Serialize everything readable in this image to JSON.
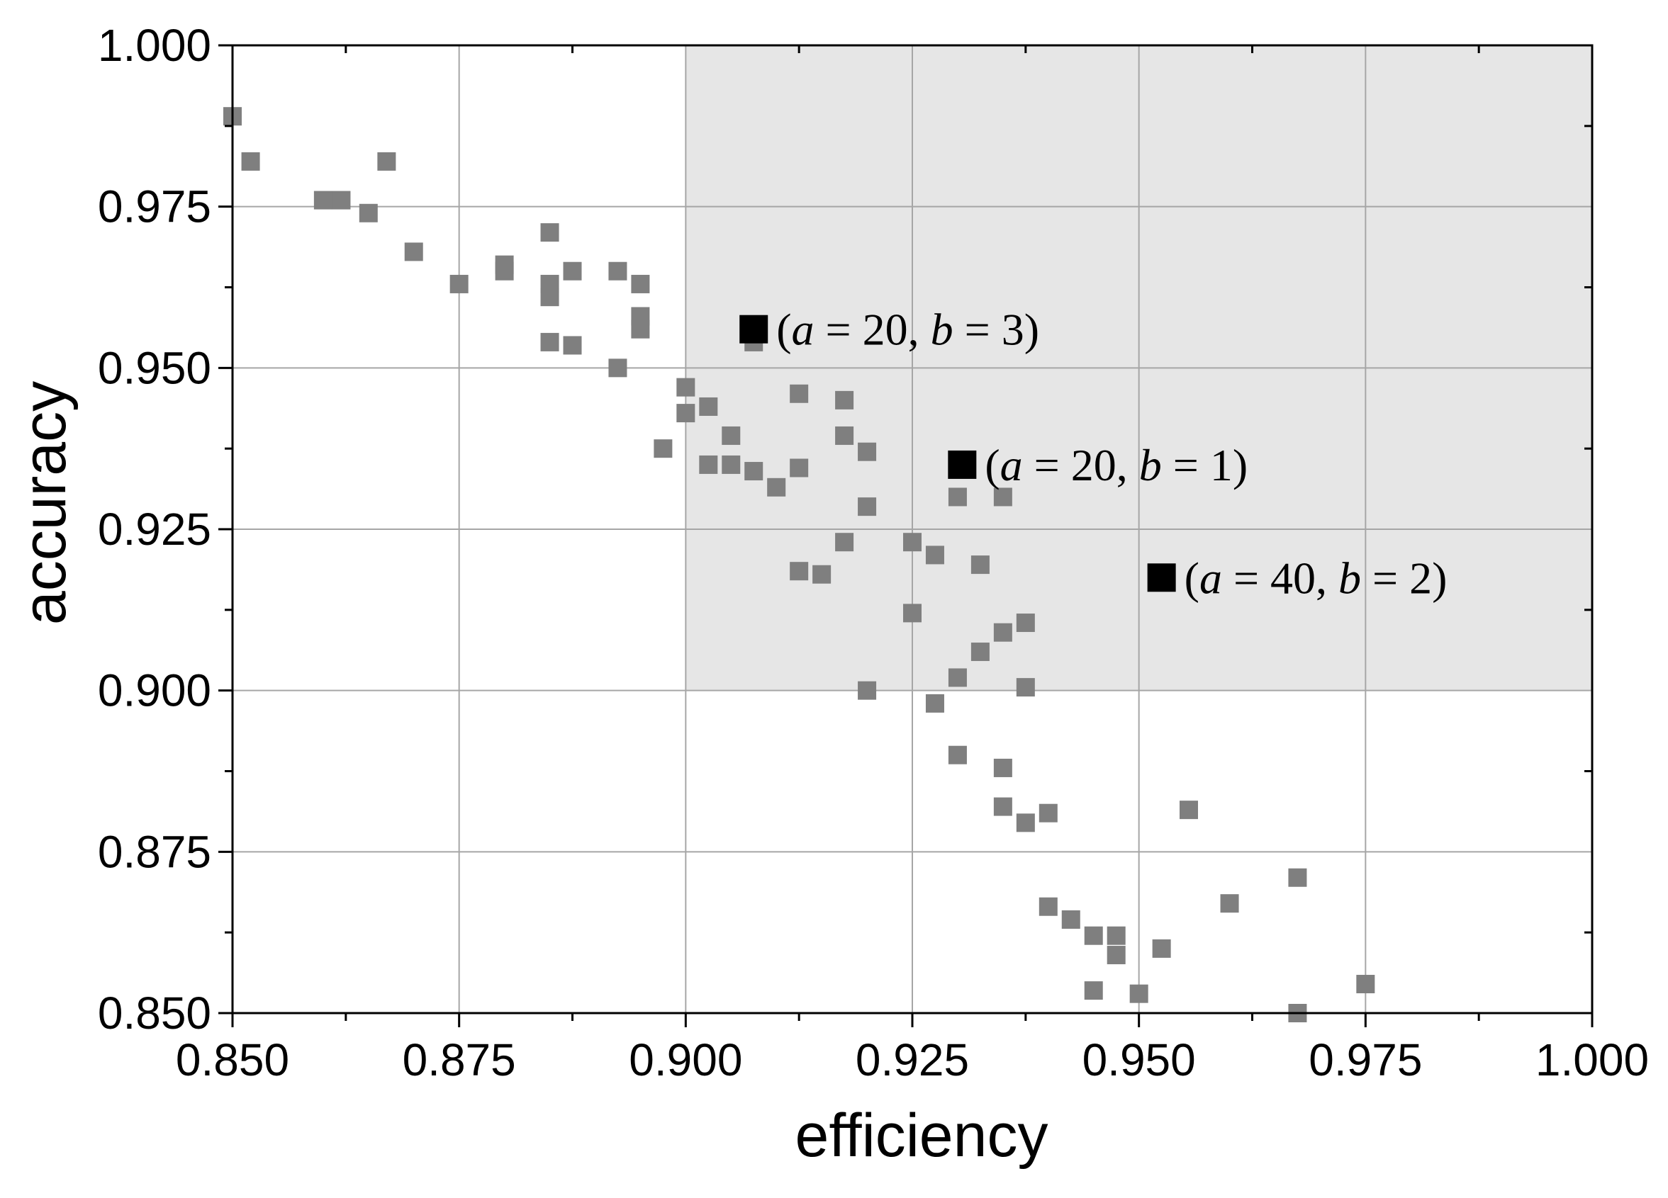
{
  "chart_data": {
    "type": "scatter",
    "xlabel": "efficiency",
    "ylabel": "accuracy",
    "xlim": [
      0.85,
      1.0
    ],
    "ylim": [
      0.85,
      1.0
    ],
    "xticks": [
      0.85,
      0.875,
      0.9,
      0.925,
      0.95,
      0.975,
      1.0
    ],
    "yticks": [
      0.85,
      0.875,
      0.9,
      0.925,
      0.95,
      0.975,
      1.0
    ],
    "xtick_labels": [
      "0.850",
      "0.875",
      "0.900",
      "0.925",
      "0.950",
      "0.975",
      "1.000"
    ],
    "ytick_labels": [
      "0.850",
      "0.875",
      "0.900",
      "0.925",
      "0.950",
      "0.975",
      "1.000"
    ],
    "grid": true,
    "shaded_region": {
      "x": [
        0.9,
        1.0
      ],
      "y": [
        0.9,
        1.0
      ],
      "color": "#e6e6e6"
    },
    "marker_color": "#7f7f7f",
    "highlight_color": "#000000",
    "series": [
      {
        "points": [
          [
            0.85,
            0.989
          ],
          [
            0.852,
            0.982
          ],
          [
            0.86,
            0.976
          ],
          [
            0.862,
            0.976
          ],
          [
            0.865,
            0.974
          ],
          [
            0.867,
            0.982
          ],
          [
            0.87,
            0.968
          ],
          [
            0.875,
            0.963
          ],
          [
            0.88,
            0.966
          ],
          [
            0.88,
            0.965
          ],
          [
            0.885,
            0.971
          ],
          [
            0.885,
            0.963
          ],
          [
            0.885,
            0.961
          ],
          [
            0.885,
            0.954
          ],
          [
            0.8875,
            0.965
          ],
          [
            0.8875,
            0.9535
          ],
          [
            0.8925,
            0.965
          ],
          [
            0.8925,
            0.95
          ],
          [
            0.895,
            0.963
          ],
          [
            0.895,
            0.958
          ],
          [
            0.895,
            0.956
          ],
          [
            0.8975,
            0.9375
          ],
          [
            0.9,
            0.947
          ],
          [
            0.9,
            0.943
          ],
          [
            0.9025,
            0.944
          ],
          [
            0.9025,
            0.935
          ],
          [
            0.905,
            0.9395
          ],
          [
            0.905,
            0.935
          ],
          [
            0.9075,
            0.934
          ],
          [
            0.9075,
            0.954
          ],
          [
            0.91,
            0.9315
          ],
          [
            0.9125,
            0.946
          ],
          [
            0.9125,
            0.9345
          ],
          [
            0.9125,
            0.9185
          ],
          [
            0.915,
            0.918
          ],
          [
            0.9175,
            0.945
          ],
          [
            0.9175,
            0.9395
          ],
          [
            0.9175,
            0.923
          ],
          [
            0.92,
            0.937
          ],
          [
            0.92,
            0.9285
          ],
          [
            0.92,
            0.9
          ],
          [
            0.925,
            0.923
          ],
          [
            0.925,
            0.912
          ],
          [
            0.9275,
            0.921
          ],
          [
            0.9275,
            0.898
          ],
          [
            0.93,
            0.93
          ],
          [
            0.93,
            0.902
          ],
          [
            0.93,
            0.89
          ],
          [
            0.9325,
            0.9195
          ],
          [
            0.9325,
            0.906
          ],
          [
            0.935,
            0.93
          ],
          [
            0.935,
            0.909
          ],
          [
            0.935,
            0.888
          ],
          [
            0.935,
            0.882
          ],
          [
            0.9375,
            0.9105
          ],
          [
            0.9375,
            0.9005
          ],
          [
            0.9375,
            0.8795
          ],
          [
            0.94,
            0.881
          ],
          [
            0.94,
            0.8665
          ],
          [
            0.9425,
            0.8645
          ],
          [
            0.945,
            0.862
          ],
          [
            0.945,
            0.8535
          ],
          [
            0.9475,
            0.862
          ],
          [
            0.9475,
            0.859
          ],
          [
            0.95,
            0.853
          ],
          [
            0.9525,
            0.86
          ],
          [
            0.9555,
            0.8815
          ],
          [
            0.96,
            0.867
          ],
          [
            0.9675,
            0.871
          ],
          [
            0.9675,
            0.85
          ],
          [
            0.975,
            0.8545
          ]
        ]
      }
    ],
    "highlighted": [
      {
        "x": 0.9075,
        "y": 0.956,
        "a": "20",
        "b": "3"
      },
      {
        "x": 0.9305,
        "y": 0.935,
        "a": "20",
        "b": "1"
      },
      {
        "x": 0.9525,
        "y": 0.9175,
        "a": "40",
        "b": "2"
      }
    ]
  }
}
